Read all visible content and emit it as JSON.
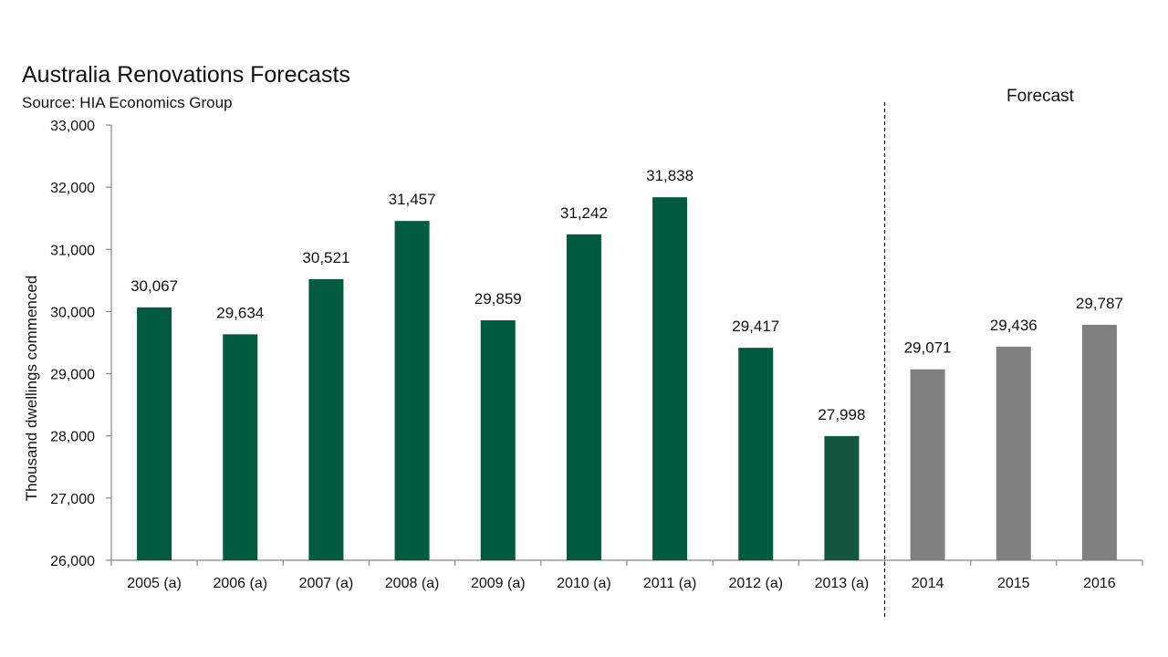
{
  "chart_data": {
    "type": "bar",
    "title": "Australia Renovations Forecasts",
    "subtitle": "Source: HIA Economics Group",
    "xlabel": "",
    "ylabel": "Thousand dwellings commenced",
    "ylim": [
      26000,
      33000
    ],
    "yticks": [
      {
        "value": 26000,
        "label": "26,000"
      },
      {
        "value": 27000,
        "label": "27,000"
      },
      {
        "value": 28000,
        "label": "28,000"
      },
      {
        "value": 29000,
        "label": "29,000"
      },
      {
        "value": 30000,
        "label": "30,000"
      },
      {
        "value": 31000,
        "label": "31,000"
      },
      {
        "value": 32000,
        "label": "32,000"
      },
      {
        "value": 33000,
        "label": "33,000"
      }
    ],
    "categories": [
      "2005 (a)",
      "2006 (a)",
      "2007 (a)",
      "2008 (a)",
      "2009 (a)",
      "2010 (a)",
      "2011 (a)",
      "2012 (a)",
      "2013 (a)",
      "2014",
      "2015",
      "2016"
    ],
    "values": [
      30067,
      29634,
      30521,
      31457,
      29859,
      31242,
      31838,
      29417,
      27998,
      29071,
      29436,
      29787
    ],
    "value_labels": [
      "30,067",
      "29,634",
      "30,521",
      "31,457",
      "29,859",
      "31,242",
      "31,838",
      "29,417",
      "27,998",
      "29,071",
      "29,436",
      "29,787"
    ],
    "bar_colors": [
      "#005b3f",
      "#005b3f",
      "#005b3f",
      "#005b3f",
      "#005b3f",
      "#005b3f",
      "#005b3f",
      "#005b3f",
      "#13573f",
      "#808080",
      "#808080",
      "#808080"
    ],
    "forecast_label": "Forecast",
    "forecast_divider_after_index": 8,
    "grid": false
  }
}
